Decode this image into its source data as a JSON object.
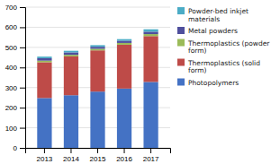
{
  "chart_data": {
    "type": "bar",
    "stacked": true,
    "categories": [
      "2013",
      "2014",
      "2015",
      "2016",
      "2017"
    ],
    "series": [
      {
        "name": "Photopolymers",
        "color": "#4472C4",
        "values": [
          248,
          262,
          280,
          295,
          328
        ]
      },
      {
        "name": "Thermoplastics (solid\nform)",
        "color": "#BE4B48",
        "values": [
          178,
          193,
          205,
          218,
          228
        ]
      },
      {
        "name": "Thermoplastics (powder\nform)",
        "color": "#9BBB59",
        "values": [
          8,
          8,
          8,
          9,
          10
        ]
      },
      {
        "name": "Metal powders",
        "color": "#4F4F9D",
        "values": [
          12,
          12,
          10,
          11,
          12
        ]
      },
      {
        "name": "Powder-bed inkjet\nmaterials",
        "color": "#4BACC6",
        "values": [
          8,
          8,
          8,
          8,
          12
        ]
      }
    ],
    "ylim": [
      0,
      700
    ],
    "yticks": [
      0,
      100,
      200,
      300,
      400,
      500,
      600,
      700
    ],
    "grid": true,
    "legend": "right"
  }
}
